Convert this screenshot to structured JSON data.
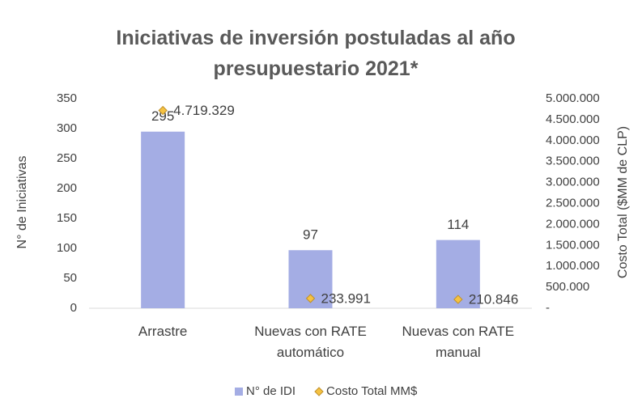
{
  "chart_data": {
    "type": "bar",
    "title": "Iniciativas de inversión postuladas al año presupuestario 2021*",
    "y_label": "N° de Iniciativas",
    "y2_label": "Costo Total ($MM de CLP)",
    "categories": [
      "Arrastre",
      "Nuevas con RATE automático",
      "Nuevas con RATE manual"
    ],
    "series": [
      {
        "name": "N° de IDI",
        "type": "bar",
        "color": "#a4ade4",
        "values": [
          295,
          97,
          114
        ]
      },
      {
        "name": "Costo Total MM$",
        "type": "scatter",
        "marker": "diamond",
        "axis": "y2",
        "color": "#f5c242",
        "values": [
          4719329,
          233991,
          210846
        ],
        "value_labels": [
          "4.719.329",
          "233.991",
          "210.846"
        ]
      }
    ],
    "ylim": [
      0,
      350
    ],
    "yticks": [
      0,
      50,
      100,
      150,
      200,
      250,
      300,
      350
    ],
    "y2lim": [
      0,
      5000000
    ],
    "y2ticks": [
      {
        "value": 0,
        "label": "-"
      },
      {
        "value": 500000,
        "label": "500.000"
      },
      {
        "value": 1000000,
        "label": "1.000.000"
      },
      {
        "value": 1500000,
        "label": "1.500.000"
      },
      {
        "value": 2000000,
        "label": "2.000.000"
      },
      {
        "value": 2500000,
        "label": "2.500.000"
      },
      {
        "value": 3000000,
        "label": "3.000.000"
      },
      {
        "value": 3500000,
        "label": "3.500.000"
      },
      {
        "value": 4000000,
        "label": "4.000.000"
      },
      {
        "value": 4500000,
        "label": "4.500.000"
      },
      {
        "value": 5000000,
        "label": "5.000.000"
      }
    ],
    "legend": "bottom"
  }
}
